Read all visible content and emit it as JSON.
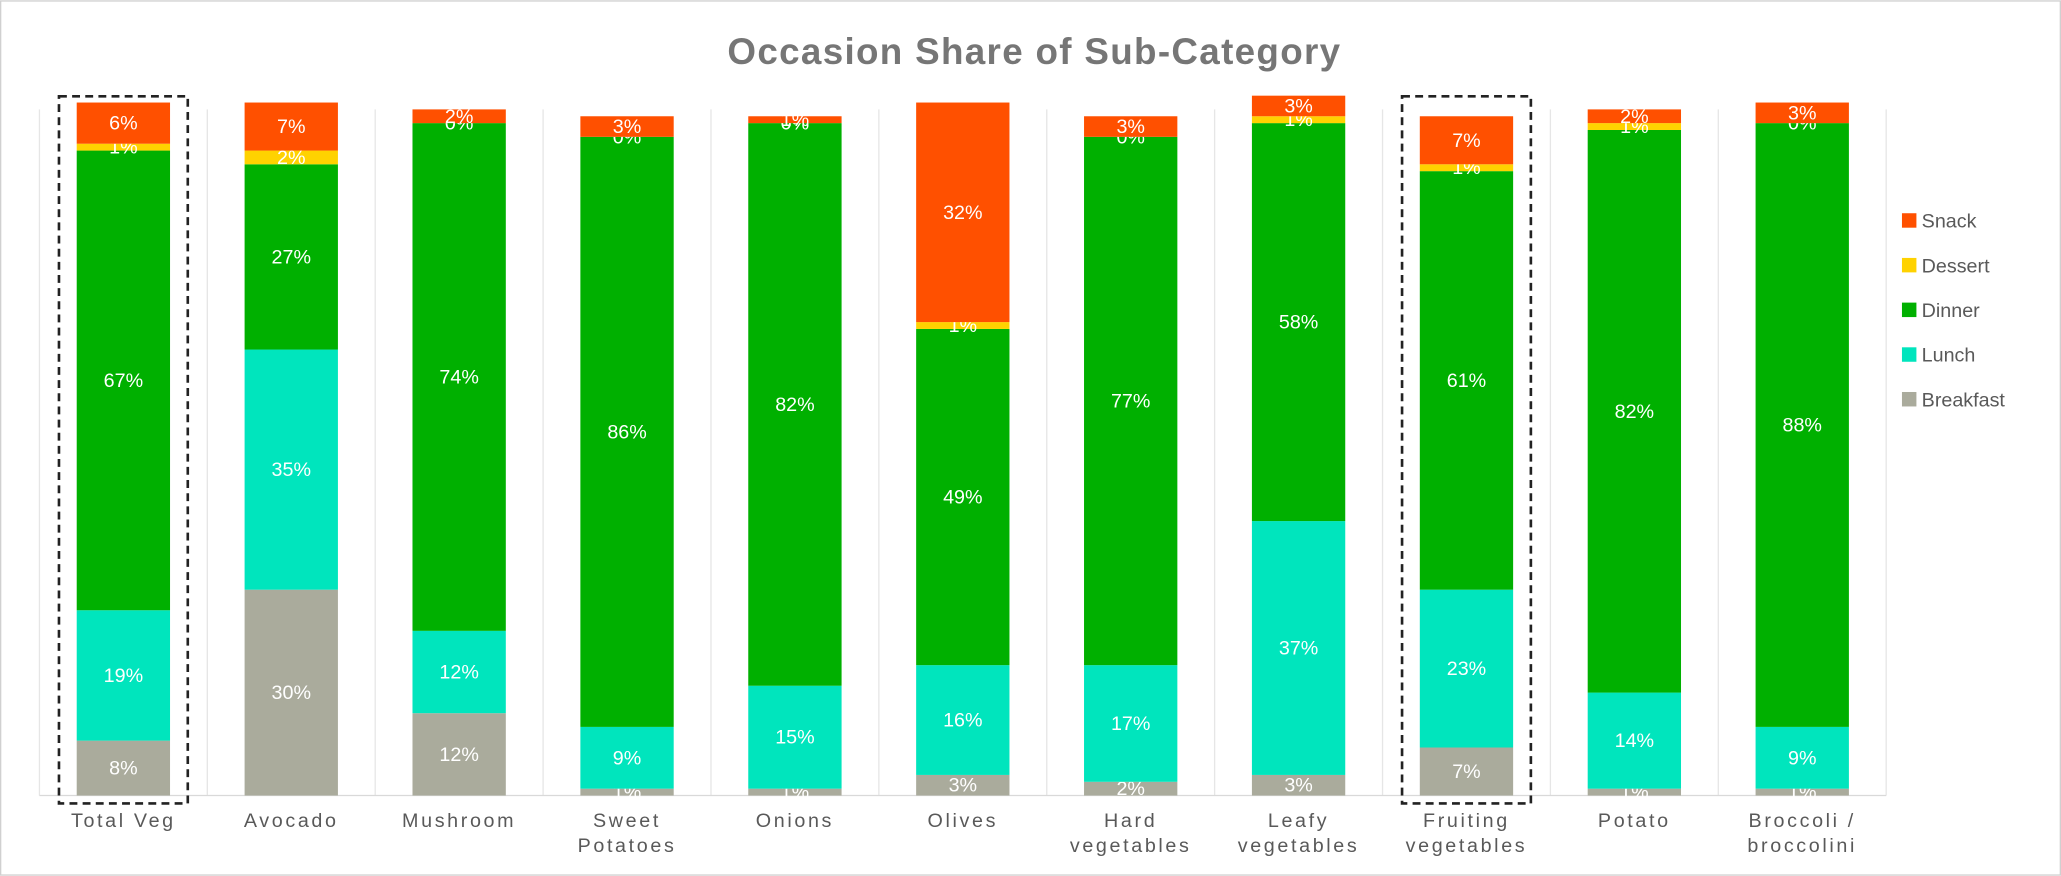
{
  "chart_data": {
    "type": "stacked_bar",
    "title": "Occasion Share of Sub-Category",
    "categories": [
      "Total Veg",
      "Avocado",
      "Mushroom",
      "Sweet Potatoes",
      "Onions",
      "Olives",
      "Hard vegetables",
      "Leafy vegetables",
      "Fruiting vegetables",
      "Potato",
      "Broccoli / broccolini"
    ],
    "ylim": [
      0,
      100
    ],
    "legend": "right",
    "series": [
      {
        "name": "Breakfast",
        "color": "#aaab9c",
        "values": [
          8,
          30,
          12,
          1,
          1,
          3,
          2,
          3,
          7,
          1,
          1
        ],
        "value_labels": [
          "8%",
          "30%",
          "12%",
          "1%",
          "1%",
          "3%",
          "2%",
          "3%",
          "7%",
          "1%",
          "1%"
        ]
      },
      {
        "name": "Lunch",
        "color": "#00e5bd",
        "values": [
          19,
          35,
          12,
          9,
          15,
          16,
          17,
          37,
          23,
          14,
          9
        ],
        "value_labels": [
          "19%",
          "35%",
          "12%",
          "9%",
          "15%",
          "16%",
          "17%",
          "37%",
          "23%",
          "14%",
          "9%"
        ]
      },
      {
        "name": "Dinner",
        "color": "#00b000",
        "values": [
          67,
          27,
          74,
          86,
          82,
          49,
          77,
          58,
          61,
          82,
          88
        ],
        "value_labels": [
          "67%",
          "27%",
          "74%",
          "86%",
          "82%",
          "49%",
          "77%",
          "58%",
          "61%",
          "82%",
          "88%"
        ]
      },
      {
        "name": "Dessert",
        "color": "#ffd200",
        "values": [
          1,
          2,
          0,
          0,
          0,
          1,
          0,
          1,
          1,
          1,
          0
        ],
        "value_labels": [
          "1%",
          "2%",
          "0%",
          "0%",
          "0%",
          "1%",
          "0%",
          "1%",
          "1%",
          "1%",
          "0%"
        ]
      },
      {
        "name": "Snack",
        "color": "#ff5000",
        "values": [
          6,
          7,
          2,
          3,
          1,
          32,
          3,
          3,
          7,
          2,
          3
        ],
        "value_labels": [
          "6%",
          "7%",
          "2%",
          "3%",
          "1%",
          "32%",
          "3%",
          "3%",
          "7%",
          "2%",
          "3%"
        ]
      }
    ]
  }
}
